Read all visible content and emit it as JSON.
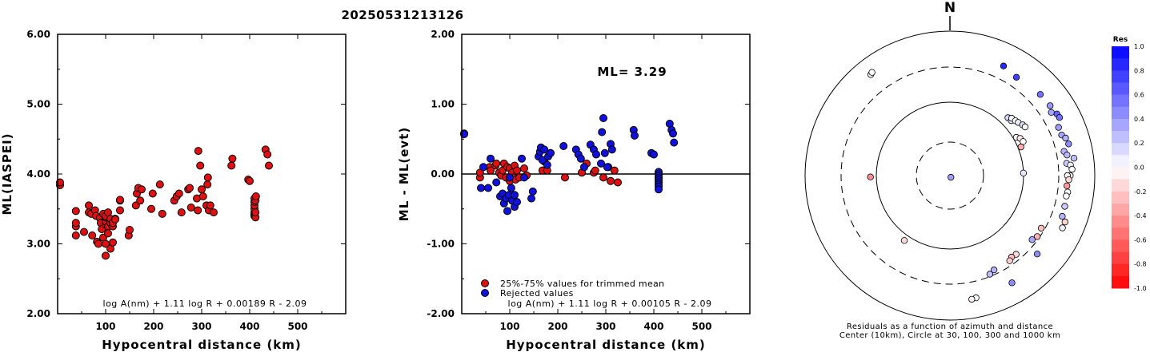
{
  "event_id": "20250531213126",
  "colors": {
    "red_point": "#dd1111",
    "blue_point": "#1111dd"
  },
  "chart_data": [
    {
      "type": "scatter",
      "xlabel": "Hypocentral distance (km)",
      "ylabel": "ML(IASPEI)",
      "xlim": [
        0,
        600
      ],
      "ylim": [
        2.0,
        6.0
      ],
      "x_ticks": [
        "100",
        "200",
        "300",
        "400",
        "500"
      ],
      "y_ticks": [
        "2.00",
        "3.00",
        "4.00",
        "5.00",
        "6.00"
      ],
      "formula": "log A(nm) + 1.11 log R + 0.00189 R - 2.09",
      "series": [
        {
          "color": "red",
          "x": [
            5,
            5,
            38,
            38,
            38,
            38,
            55,
            65,
            65,
            70,
            72,
            78,
            80,
            82,
            85,
            88,
            90,
            92,
            95,
            95,
            100,
            100,
            100,
            100,
            100,
            100,
            105,
            105,
            105,
            110,
            110,
            110,
            115,
            115,
            115,
            120,
            120,
            130,
            130,
            130,
            148,
            150,
            163,
            165,
            168,
            172,
            175,
            195,
            198,
            213,
            218,
            243,
            248,
            253,
            258,
            272,
            275,
            278,
            290,
            292,
            293,
            297,
            300,
            303,
            310,
            312,
            313,
            315,
            318,
            325,
            362,
            364,
            397,
            400,
            410,
            410,
            410,
            410,
            410,
            410,
            410,
            412,
            412,
            412,
            413,
            433,
            437,
            440
          ],
          "y": [
            3.84,
            3.88,
            3.47,
            3.12,
            3.25,
            3.3,
            3.17,
            3.55,
            3.45,
            3.43,
            3.12,
            3.48,
            3.4,
            3.03,
            3.0,
            3.37,
            3.3,
            3.21,
            3.09,
            3.43,
            2.83,
            3.0,
            3.28,
            3.32,
            3.38,
            3.4,
            3.25,
            3.15,
            3.45,
            2.93,
            3.3,
            3.36,
            3.02,
            3.25,
            3.3,
            3.36,
            3.35,
            3.48,
            3.62,
            3.63,
            3.12,
            3.2,
            3.55,
            3.72,
            3.8,
            3.62,
            3.78,
            3.5,
            3.72,
            3.85,
            3.43,
            3.62,
            3.68,
            3.72,
            3.45,
            3.78,
            3.8,
            3.52,
            3.65,
            3.48,
            4.33,
            4.12,
            3.78,
            3.68,
            3.55,
            3.85,
            3.95,
            3.48,
            3.55,
            3.45,
            4.12,
            4.22,
            3.92,
            3.9,
            3.4,
            3.42,
            3.45,
            3.5,
            3.55,
            3.6,
            3.65,
            3.38,
            3.45,
            3.62,
            3.68,
            4.35,
            4.28,
            4.12
          ]
        }
      ]
    },
    {
      "type": "scatter",
      "xlabel": "Hypocentral distance (km)",
      "ylabel": "ML - ML(evt)",
      "xlim": [
        0,
        600
      ],
      "ylim": [
        -2.0,
        2.0
      ],
      "x_ticks": [
        "100",
        "200",
        "300",
        "400",
        "500"
      ],
      "y_ticks": [
        "-2.00",
        "-1.00",
        "0.00",
        "1.00",
        "2.00"
      ],
      "annotation": "ML= 3.29",
      "formula": "log A(nm) + 1.11 log R + 0.00105 R - 2.09",
      "reference_line_y": 0,
      "series": [
        {
          "name": "25%-75% values for trimmed mean",
          "color": "red",
          "x": [
            38,
            38,
            58,
            60,
            70,
            72,
            78,
            82,
            85,
            88,
            92,
            95,
            100,
            100,
            105,
            108,
            110,
            112,
            115,
            120,
            130,
            135,
            168,
            172,
            178,
            215,
            250,
            260,
            275,
            278,
            295,
            305,
            310,
            318,
            325
          ],
          "y": [
            -0.05,
            0.02,
            0.1,
            0.05,
            0.12,
            0.15,
            0.02,
            -0.02,
            0.05,
            0.15,
            -0.05,
            0.1,
            -0.1,
            0.08,
            0.02,
            -0.05,
            0.12,
            -0.08,
            0.05,
            -0.05,
            0.08,
            -0.02,
            0.05,
            0.18,
            0.05,
            -0.05,
            0.02,
            0.15,
            0.02,
            0.05,
            -0.05,
            0.1,
            -0.1,
            0.05,
            -0.12
          ]
        },
        {
          "name": "Rejected values",
          "color": "blue",
          "x": [
            5,
            5,
            40,
            45,
            55,
            60,
            72,
            80,
            85,
            88,
            92,
            95,
            98,
            100,
            103,
            105,
            110,
            110,
            115,
            125,
            130,
            145,
            148,
            160,
            163,
            165,
            168,
            172,
            178,
            180,
            185,
            212,
            238,
            243,
            248,
            255,
            268,
            275,
            280,
            290,
            292,
            295,
            298,
            303,
            310,
            313,
            358,
            360,
            395,
            400,
            410,
            410,
            410,
            410,
            410,
            410,
            410,
            410,
            410,
            433,
            437,
            440,
            442
          ],
          "y": [
            0.58,
            0.57,
            -0.2,
            0.1,
            -0.2,
            0.22,
            -0.12,
            -0.32,
            -0.28,
            -0.42,
            -0.35,
            -0.53,
            -0.3,
            -0.05,
            -0.2,
            -0.38,
            -0.3,
            -0.47,
            -0.4,
            0.22,
            -0.05,
            -0.35,
            -0.25,
            0.25,
            0.32,
            0.38,
            0.2,
            0.35,
            0.13,
            0.25,
            0.3,
            0.4,
            0.35,
            0.28,
            0.22,
            0.1,
            0.42,
            0.35,
            0.28,
            0.15,
            0.6,
            0.8,
            0.3,
            0.1,
            0.43,
            0.35,
            0.63,
            0.55,
            0.3,
            0.28,
            0.03,
            0.0,
            -0.03,
            -0.06,
            -0.09,
            -0.12,
            -0.15,
            -0.18,
            -0.22,
            0.72,
            0.63,
            0.58,
            0.45
          ]
        }
      ]
    },
    {
      "type": "polar-scatter",
      "north_label": "N",
      "caption_line1": "Residuals as a function of azimuth and distance",
      "caption_line2": "Center (10km), Circle at 30, 100, 300 and 1000 km",
      "colorbar_title": "Res",
      "colorbar_ticks": [
        "1.0",
        "0.8",
        "0.6",
        "0.4",
        "0.2",
        "0.0",
        "-0.2",
        "-0.4",
        "-0.6",
        "-0.8",
        "-1.0"
      ],
      "ring_distances_km": [
        30,
        100,
        300,
        1000
      ],
      "points": [
        {
          "az": 269,
          "dist": 120,
          "res": -0.45
        },
        {
          "az": 150,
          "dist": 6,
          "res": 0.38
        },
        {
          "az": 322,
          "dist": 580,
          "res": 0.02
        },
        {
          "az": 323,
          "dist": 600,
          "res": 0.02
        },
        {
          "az": 26,
          "dist": 470,
          "res": 0.85
        },
        {
          "az": 34,
          "dist": 420,
          "res": 0.75
        },
        {
          "az": 45,
          "dist": 130,
          "res": 0.15
        },
        {
          "az": 48,
          "dist": 132,
          "res": 0.1
        },
        {
          "az": 47,
          "dist": 140,
          "res": 0.05
        },
        {
          "az": 50,
          "dist": 145,
          "res": 0.0
        },
        {
          "az": 52,
          "dist": 150,
          "res": 0.08
        },
        {
          "az": 55,
          "dist": 160,
          "res": 0.12
        },
        {
          "az": 57,
          "dist": 165,
          "res": 0.02
        },
        {
          "az": 60,
          "dist": 110,
          "res": 0.0
        },
        {
          "az": 62,
          "dist": 120,
          "res": -0.1
        },
        {
          "az": 65,
          "dist": 125,
          "res": 0.0
        },
        {
          "az": 68,
          "dist": 110,
          "res": -0.32
        },
        {
          "az": 48,
          "dist": 460,
          "res": 0.55
        },
        {
          "az": 55,
          "dist": 470,
          "res": 0.4
        },
        {
          "az": 58,
          "dist": 430,
          "res": 0.35
        },
        {
          "az": 60,
          "dist": 490,
          "res": 0.6
        },
        {
          "az": 62,
          "dist": 500,
          "res": 0.55
        },
        {
          "az": 66,
          "dist": 420,
          "res": 0.38
        },
        {
          "az": 70,
          "dist": 420,
          "res": 0.35
        },
        {
          "az": 72,
          "dist": 460,
          "res": 0.3
        },
        {
          "az": 75,
          "dist": 480,
          "res": 0.45
        },
        {
          "az": 78,
          "dist": 390,
          "res": 0.3
        },
        {
          "az": 80,
          "dist": 420,
          "res": 0.28
        },
        {
          "az": 82,
          "dist": 520,
          "res": 0.25
        },
        {
          "az": 84,
          "dist": 400,
          "res": 0.2
        },
        {
          "az": 85,
          "dist": 450,
          "res": 0.05
        },
        {
          "az": 87,
          "dist": 470,
          "res": 0.0
        },
        {
          "az": 90,
          "dist": 440,
          "res": 0.02
        },
        {
          "az": 88,
          "dist": 100,
          "res": 0.1
        },
        {
          "az": 90,
          "dist": 400,
          "res": -0.05
        },
        {
          "az": 92,
          "dist": 420,
          "res": -0.15
        },
        {
          "az": 95,
          "dist": 400,
          "res": -0.4
        },
        {
          "az": 98,
          "dist": 420,
          "res": 0.0
        },
        {
          "az": 100,
          "dist": 410,
          "res": 0.02
        },
        {
          "az": 105,
          "dist": 420,
          "res": 0.2
        },
        {
          "az": 110,
          "dist": 430,
          "res": 0.3
        },
        {
          "az": 112,
          "dist": 500,
          "res": -0.18
        },
        {
          "az": 115,
          "dist": 500,
          "res": 0.05
        },
        {
          "az": 120,
          "dist": 270,
          "res": -0.25
        },
        {
          "az": 125,
          "dist": 280,
          "res": -0.3
        },
        {
          "az": 128,
          "dist": 260,
          "res": 0.35
        },
        {
          "az": 132,
          "dist": 400,
          "res": 0.45
        },
        {
          "az": 140,
          "dist": 250,
          "res": -0.15
        },
        {
          "az": 143,
          "dist": 245,
          "res": -0.25
        },
        {
          "az": 145,
          "dist": 260,
          "res": -0.2
        },
        {
          "az": 150,
          "dist": 500,
          "res": 0.45
        },
        {
          "az": 155,
          "dist": 260,
          "res": 0.3
        },
        {
          "az": 158,
          "dist": 280,
          "res": 0.25
        },
        {
          "az": 168,
          "dist": 520,
          "res": 0.0
        },
        {
          "az": 170,
          "dist": 530,
          "res": -0.05
        },
        {
          "az": 215,
          "dist": 120,
          "res": -0.15
        }
      ]
    }
  ]
}
